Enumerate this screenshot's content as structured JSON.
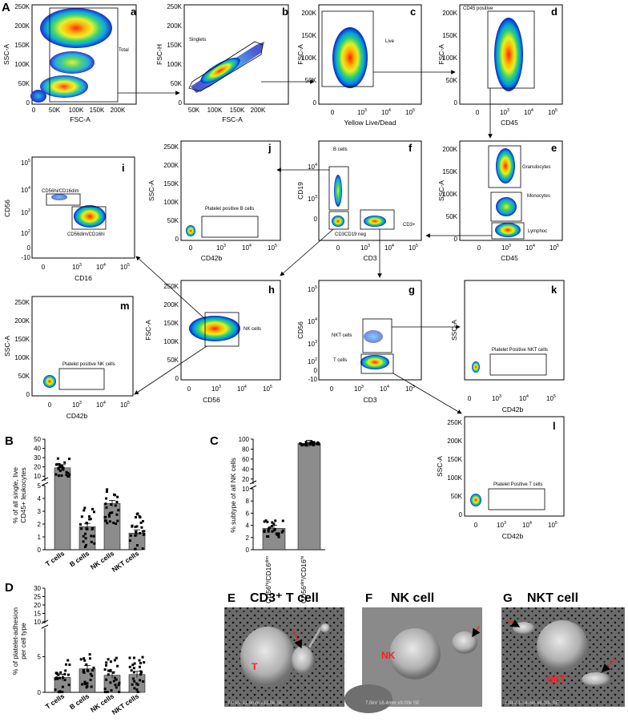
{
  "figure": {
    "label_A": "A",
    "label_B": "B",
    "label_C": "C",
    "label_D": "D",
    "label_E": "E",
    "label_F": "F",
    "label_G": "G"
  },
  "flow_panels": {
    "a": {
      "letter": "a",
      "xlabel": "FSC-A",
      "ylabel": "SSC-A",
      "gate": "Total"
    },
    "b": {
      "letter": "b",
      "xlabel": "FSC-A",
      "ylabel": "FSC-H",
      "gate": "Singlets"
    },
    "c": {
      "letter": "c",
      "xlabel": "Yellow Live/Dead",
      "ylabel": "FSC-A",
      "gate": "Live"
    },
    "d": {
      "letter": "d",
      "xlabel": "CD45",
      "ylabel": "FSC-A",
      "gate": "CD45 positive"
    },
    "e": {
      "letter": "e",
      "xlabel": "CD45",
      "ylabel": "SSC-A",
      "gate1": "Granulocytes",
      "gate2": "Monocytes",
      "gate3": "Lymphoc"
    },
    "f": {
      "letter": "f",
      "xlabel": "CD3",
      "ylabel": "CD19",
      "gate1": "B cells",
      "gate2": "CD3CD19 neg",
      "gate3": "CD3+"
    },
    "j": {
      "letter": "j",
      "xlabel": "CD42b",
      "ylabel": "SSC-A",
      "gate": "Platelet positive B cells"
    },
    "i": {
      "letter": "i",
      "xlabel": "CD16",
      "ylabel": "CD56",
      "gate1": "CD56hi/CD16dim",
      "gate2": "CD56dim/CD16hi"
    },
    "h": {
      "letter": "h",
      "xlabel": "CD56",
      "ylabel": "FSC-A",
      "gate": "NK cells"
    },
    "g": {
      "letter": "g",
      "xlabel": "CD3",
      "ylabel": "CD56",
      "gate1": "NKT cells",
      "gate2": "T cells"
    },
    "k": {
      "letter": "k",
      "xlabel": "CD42b",
      "ylabel": "SSC-A",
      "gate": "Platelet Positive NKT cells"
    },
    "m": {
      "letter": "m",
      "xlabel": "CD42b",
      "ylabel": "SSC-A",
      "gate": "Platelet positive NK cells"
    },
    "l": {
      "letter": "l",
      "xlabel": "CD42b",
      "ylabel": "SSC-A",
      "gate": "Platelet Positive T cells"
    }
  },
  "lin_ticks": [
    "0",
    "50K",
    "100K",
    "150K",
    "200K",
    "250K"
  ],
  "lin_ticks_x": [
    "0",
    "50K",
    "100K",
    "150K",
    "200K"
  ],
  "chart_data": [
    {
      "type": "bar",
      "panel": "B",
      "ylabel": "% of all single, live CD45+ leukocytes",
      "categories": [
        "T cells",
        "B cells",
        "NK cells",
        "NKT cells"
      ],
      "values": [
        19,
        1.8,
        3.6,
        1.3
      ],
      "y_ticks_upper": [
        "10",
        "20",
        "30",
        "40",
        "50"
      ],
      "y_ticks_lower": [
        "0",
        "1",
        "2",
        "3",
        "4",
        "5"
      ]
    },
    {
      "type": "bar",
      "panel": "C",
      "ylabel": "% subtype of all NK cells",
      "categories": [
        "CD56hi/CD16dim",
        "CD56dim/CD16hi"
      ],
      "values": [
        3.5,
        91
      ],
      "y_ticks_upper": [
        "20",
        "40",
        "60",
        "80",
        "100"
      ],
      "y_ticks_lower": [
        "0",
        "2",
        "4",
        "6",
        "8",
        "10"
      ]
    },
    {
      "type": "bar",
      "panel": "D",
      "ylabel": "% of platelet-adhesion per cell type",
      "categories": [
        "T cells",
        "B cells",
        "NK cells",
        "NKT cells"
      ],
      "values": [
        2.1,
        3.3,
        2.4,
        2.5
      ],
      "y_ticks_upper": [
        "10",
        "15",
        "20",
        "25",
        "30"
      ],
      "y_ticks_lower": [
        "0",
        "5"
      ]
    }
  ],
  "sem": {
    "E_title": "CD3⁺ T cell",
    "F_title": "NK cell",
    "G_title": "NKT cell",
    "E_label": "T",
    "F_label": "NK",
    "G_label": "NKT"
  }
}
